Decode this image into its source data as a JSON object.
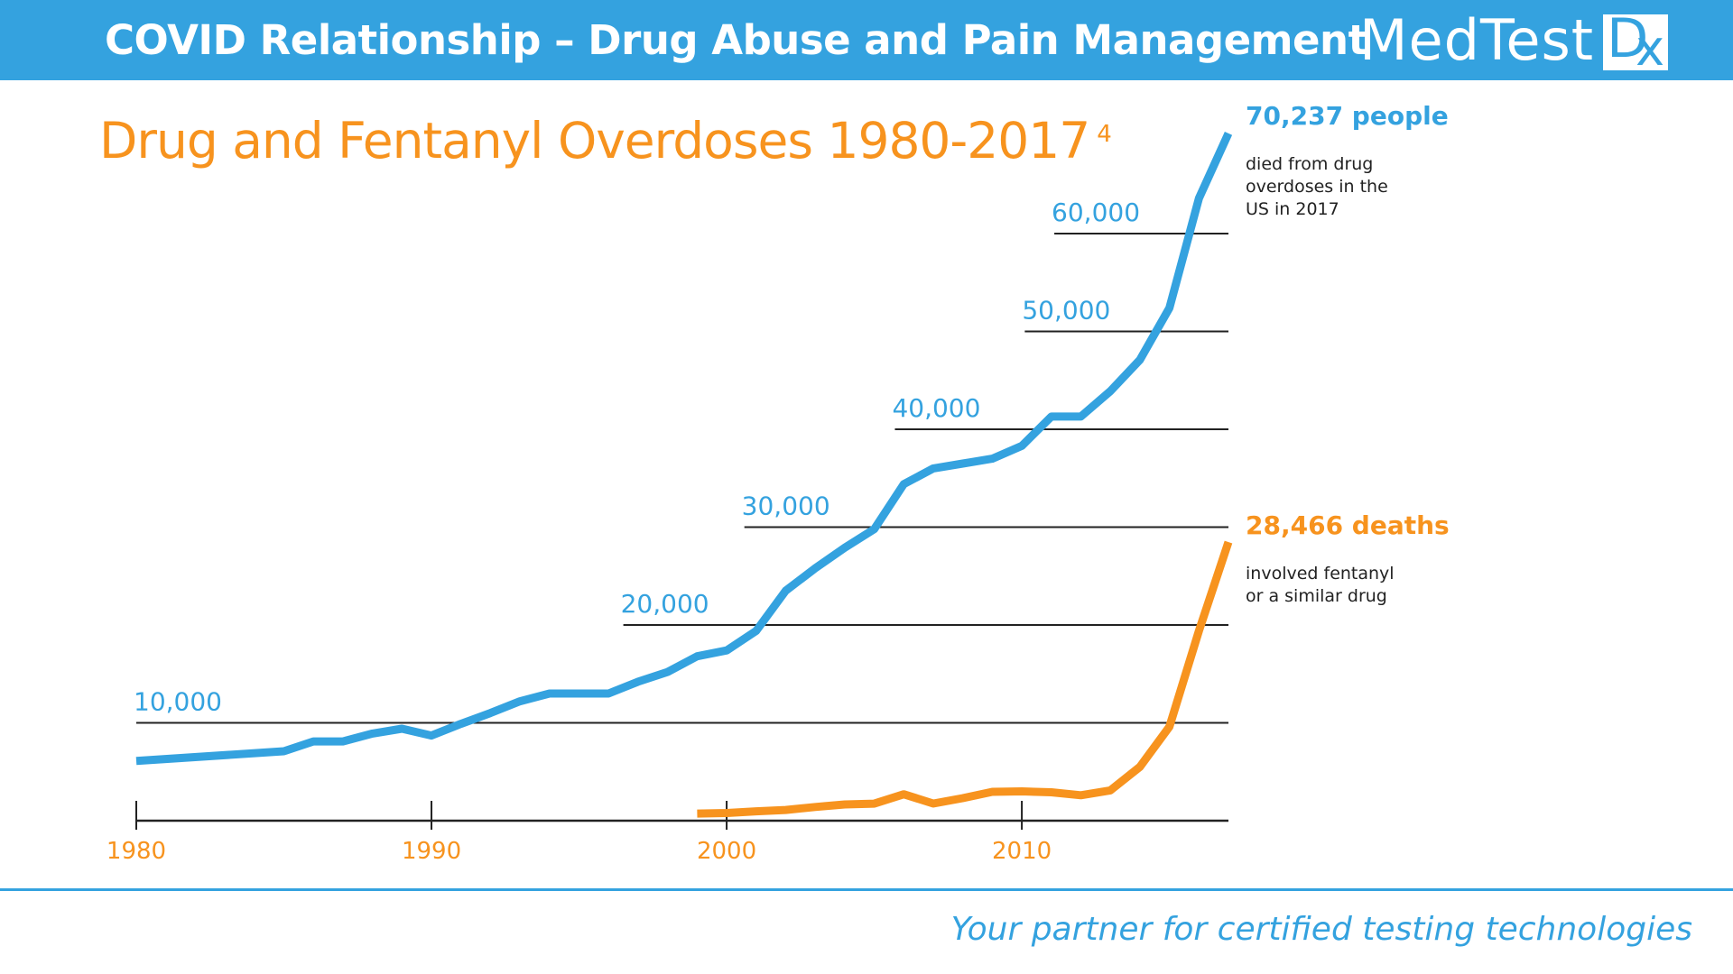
{
  "header": {
    "title": "COVID Relationship – Drug Abuse and Pain Management",
    "logo_text": "MedTest",
    "logo_suffix_d": "D",
    "logo_suffix_x": "x"
  },
  "colors": {
    "brand_blue": "#34a2df",
    "accent_orange": "#f7931e",
    "grid": "#222222"
  },
  "chart_data": {
    "type": "line",
    "title": "Drug and Fentanyl Overdoses 1980-2017",
    "title_footnote": "4",
    "xlabel": "",
    "ylabel": "",
    "x_ticks": [
      1980,
      1990,
      2000,
      2010
    ],
    "x_tick_labels": [
      "1980",
      "1990",
      "2000",
      "2010"
    ],
    "xlim": [
      1980,
      2017
    ],
    "ylim": [
      0,
      72000
    ],
    "gridlines": [
      {
        "value": 10000,
        "label": "10,000",
        "from_year": 1980
      },
      {
        "value": 20000,
        "label": "20,000",
        "from_year": 1996.5
      },
      {
        "value": 30000,
        "label": "30,000",
        "from_year": 2000.6
      },
      {
        "value": 40000,
        "label": "40,000",
        "from_year": 2005.7
      },
      {
        "value": 50000,
        "label": "50,000",
        "from_year": 2010.1
      },
      {
        "value": 60000,
        "label": "60,000",
        "from_year": 2011.1
      }
    ],
    "series": [
      {
        "name": "All drug overdose deaths",
        "color": "#34a2df",
        "x": [
          1980,
          1985,
          1986,
          1987,
          1988,
          1989,
          1990,
          1991,
          1992,
          1993,
          1994,
          1995,
          1996,
          1997,
          1998,
          1999,
          2000,
          2001,
          2002,
          2003,
          2004,
          2005,
          2006,
          2007,
          2008,
          2009,
          2010,
          2011,
          2012,
          2013,
          2014,
          2015,
          2016,
          2017
        ],
        "values": [
          6100,
          7100,
          8100,
          8100,
          8900,
          9400,
          8700,
          9900,
          11000,
          12200,
          13000,
          13000,
          13000,
          14200,
          15200,
          16800,
          17400,
          19400,
          23500,
          25800,
          27900,
          29800,
          34400,
          36000,
          36500,
          37000,
          38300,
          41300,
          41300,
          43900,
          47100,
          52400,
          63600,
          70237
        ]
      },
      {
        "name": "Fentanyl-involved deaths",
        "color": "#f7931e",
        "x": [
          1999,
          2000,
          2001,
          2002,
          2003,
          2004,
          2005,
          2006,
          2007,
          2008,
          2009,
          2010,
          2011,
          2012,
          2013,
          2014,
          2015,
          2016,
          2017
        ],
        "values": [
          730,
          780,
          960,
          1100,
          1400,
          1660,
          1740,
          2700,
          1750,
          2300,
          2950,
          3000,
          2900,
          2600,
          3100,
          5500,
          9600,
          19400,
          28466
        ]
      }
    ],
    "annotations": [
      {
        "series": "All drug overdose deaths",
        "headline": "70,237 people",
        "text": "died from drug\noverdoses in the\nUS in 2017"
      },
      {
        "series": "Fentanyl-involved deaths",
        "headline": "28,466 deaths",
        "text": "involved fentanyl\nor a similar drug"
      }
    ],
    "grid": true,
    "legend": "none"
  },
  "footer": {
    "tagline": "Your partner for certified testing technologies"
  }
}
